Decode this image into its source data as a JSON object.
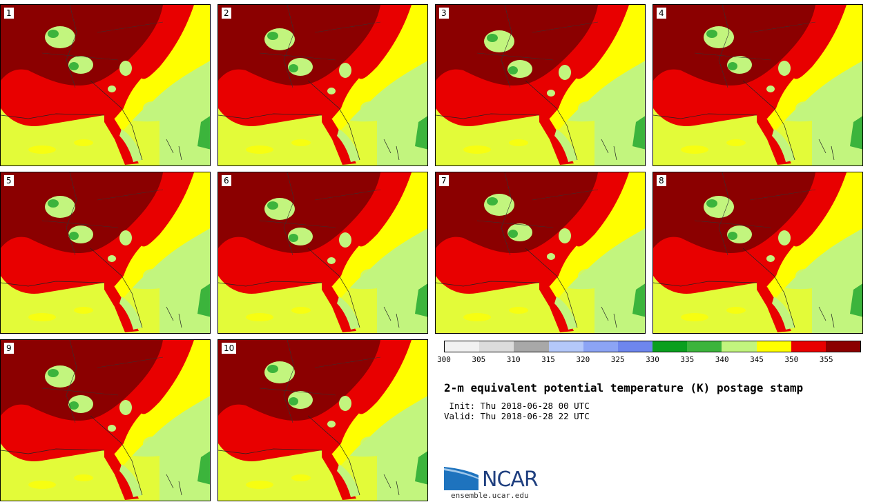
{
  "stamps": [
    {
      "label": "1"
    },
    {
      "label": "2"
    },
    {
      "label": "3"
    },
    {
      "label": "4"
    },
    {
      "label": "5"
    },
    {
      "label": "6"
    },
    {
      "label": "7"
    },
    {
      "label": "8"
    },
    {
      "label": "9"
    },
    {
      "label": "10"
    }
  ],
  "colorbar": {
    "ticks": [
      "300",
      "305",
      "310",
      "315",
      "320",
      "325",
      "330",
      "335",
      "340",
      "345",
      "350",
      "355"
    ],
    "colors": [
      "#f2f2f2",
      "#dcdcdc",
      "#a8a8a8",
      "#b4c8fa",
      "#8ca4f5",
      "#6e86ee",
      "#0a9f1e",
      "#3cb43c",
      "#c2f57e",
      "#ffff00",
      "#e80000",
      "#8b0000"
    ]
  },
  "title": "2-m equivalent potential temperature (K) postage stamp",
  "init": " Init: Thu 2018-06-28 00 UTC",
  "valid": "Valid: Thu 2018-06-28 22 UTC",
  "logo": {
    "text": "NCAR",
    "url": "ensemble.ucar.edu"
  }
}
